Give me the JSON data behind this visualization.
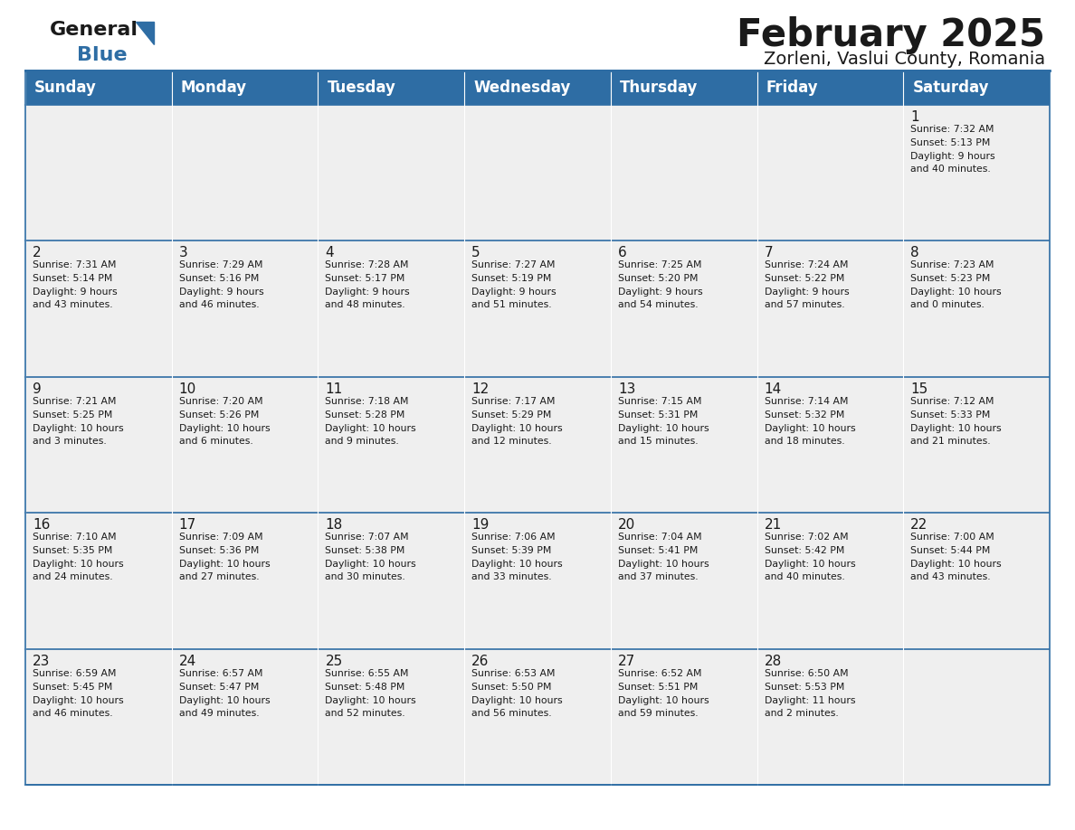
{
  "title": "February 2025",
  "subtitle": "Zorleni, Vaslui County, Romania",
  "header_color": "#2E6DA4",
  "header_text_color": "#FFFFFF",
  "cell_bg_color": "#EFEFEF",
  "border_color": "#2E6DA4",
  "days_of_week": [
    "Sunday",
    "Monday",
    "Tuesday",
    "Wednesday",
    "Thursday",
    "Friday",
    "Saturday"
  ],
  "logo_color1": "#1A1A1A",
  "logo_color2": "#2E6DA4",
  "calendar_data": [
    [
      null,
      null,
      null,
      null,
      null,
      null,
      {
        "day": 1,
        "sunrise": "7:32 AM",
        "sunset": "5:13 PM",
        "daylight": "9 hours\nand 40 minutes."
      }
    ],
    [
      {
        "day": 2,
        "sunrise": "7:31 AM",
        "sunset": "5:14 PM",
        "daylight": "9 hours\nand 43 minutes."
      },
      {
        "day": 3,
        "sunrise": "7:29 AM",
        "sunset": "5:16 PM",
        "daylight": "9 hours\nand 46 minutes."
      },
      {
        "day": 4,
        "sunrise": "7:28 AM",
        "sunset": "5:17 PM",
        "daylight": "9 hours\nand 48 minutes."
      },
      {
        "day": 5,
        "sunrise": "7:27 AM",
        "sunset": "5:19 PM",
        "daylight": "9 hours\nand 51 minutes."
      },
      {
        "day": 6,
        "sunrise": "7:25 AM",
        "sunset": "5:20 PM",
        "daylight": "9 hours\nand 54 minutes."
      },
      {
        "day": 7,
        "sunrise": "7:24 AM",
        "sunset": "5:22 PM",
        "daylight": "9 hours\nand 57 minutes."
      },
      {
        "day": 8,
        "sunrise": "7:23 AM",
        "sunset": "5:23 PM",
        "daylight": "10 hours\nand 0 minutes."
      }
    ],
    [
      {
        "day": 9,
        "sunrise": "7:21 AM",
        "sunset": "5:25 PM",
        "daylight": "10 hours\nand 3 minutes."
      },
      {
        "day": 10,
        "sunrise": "7:20 AM",
        "sunset": "5:26 PM",
        "daylight": "10 hours\nand 6 minutes."
      },
      {
        "day": 11,
        "sunrise": "7:18 AM",
        "sunset": "5:28 PM",
        "daylight": "10 hours\nand 9 minutes."
      },
      {
        "day": 12,
        "sunrise": "7:17 AM",
        "sunset": "5:29 PM",
        "daylight": "10 hours\nand 12 minutes."
      },
      {
        "day": 13,
        "sunrise": "7:15 AM",
        "sunset": "5:31 PM",
        "daylight": "10 hours\nand 15 minutes."
      },
      {
        "day": 14,
        "sunrise": "7:14 AM",
        "sunset": "5:32 PM",
        "daylight": "10 hours\nand 18 minutes."
      },
      {
        "day": 15,
        "sunrise": "7:12 AM",
        "sunset": "5:33 PM",
        "daylight": "10 hours\nand 21 minutes."
      }
    ],
    [
      {
        "day": 16,
        "sunrise": "7:10 AM",
        "sunset": "5:35 PM",
        "daylight": "10 hours\nand 24 minutes."
      },
      {
        "day": 17,
        "sunrise": "7:09 AM",
        "sunset": "5:36 PM",
        "daylight": "10 hours\nand 27 minutes."
      },
      {
        "day": 18,
        "sunrise": "7:07 AM",
        "sunset": "5:38 PM",
        "daylight": "10 hours\nand 30 minutes."
      },
      {
        "day": 19,
        "sunrise": "7:06 AM",
        "sunset": "5:39 PM",
        "daylight": "10 hours\nand 33 minutes."
      },
      {
        "day": 20,
        "sunrise": "7:04 AM",
        "sunset": "5:41 PM",
        "daylight": "10 hours\nand 37 minutes."
      },
      {
        "day": 21,
        "sunrise": "7:02 AM",
        "sunset": "5:42 PM",
        "daylight": "10 hours\nand 40 minutes."
      },
      {
        "day": 22,
        "sunrise": "7:00 AM",
        "sunset": "5:44 PM",
        "daylight": "10 hours\nand 43 minutes."
      }
    ],
    [
      {
        "day": 23,
        "sunrise": "6:59 AM",
        "sunset": "5:45 PM",
        "daylight": "10 hours\nand 46 minutes."
      },
      {
        "day": 24,
        "sunrise": "6:57 AM",
        "sunset": "5:47 PM",
        "daylight": "10 hours\nand 49 minutes."
      },
      {
        "day": 25,
        "sunrise": "6:55 AM",
        "sunset": "5:48 PM",
        "daylight": "10 hours\nand 52 minutes."
      },
      {
        "day": 26,
        "sunrise": "6:53 AM",
        "sunset": "5:50 PM",
        "daylight": "10 hours\nand 56 minutes."
      },
      {
        "day": 27,
        "sunrise": "6:52 AM",
        "sunset": "5:51 PM",
        "daylight": "10 hours\nand 59 minutes."
      },
      {
        "day": 28,
        "sunrise": "6:50 AM",
        "sunset": "5:53 PM",
        "daylight": "11 hours\nand 2 minutes."
      },
      null
    ]
  ]
}
